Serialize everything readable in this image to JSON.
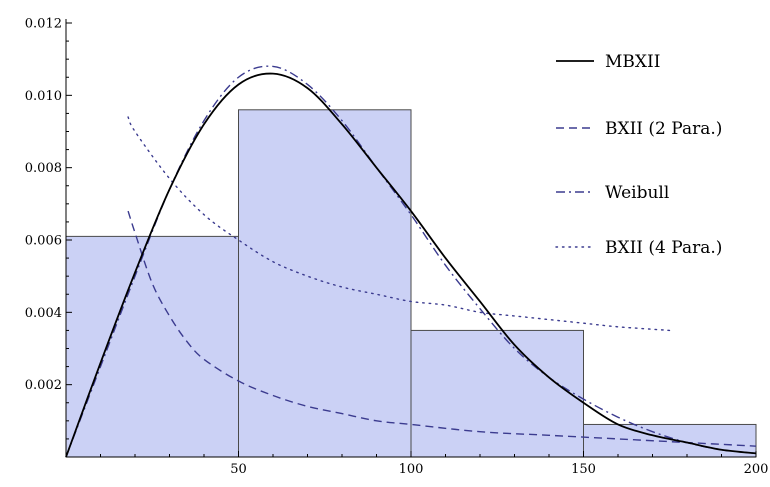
{
  "chart_data": {
    "type": "histogram",
    "xlim": [
      0,
      200
    ],
    "ylim": [
      0,
      0.012
    ],
    "x_ticks": [
      50,
      100,
      150,
      200
    ],
    "x_tick_labels": [
      "50",
      "100",
      "150",
      "200"
    ],
    "y_ticks": [
      0.002,
      0.004,
      0.006,
      0.008,
      0.01,
      0.012
    ],
    "y_tick_labels": [
      "0.002",
      "0.004",
      "0.006",
      "0.008",
      "0.010",
      "0.012"
    ],
    "grid": false,
    "legend_position": "right",
    "histogram": {
      "bins": [
        [
          0,
          50
        ],
        [
          50,
          100
        ],
        [
          100,
          150
        ],
        [
          150,
          200
        ]
      ],
      "values": [
        0.0061,
        0.0096,
        0.0035,
        0.0009
      ],
      "color": "#cbd1f5"
    },
    "series": [
      {
        "name": "MBXII",
        "style": "solid",
        "color": "#000000",
        "x": [
          0,
          10,
          20,
          30,
          40,
          50,
          60,
          70,
          80,
          90,
          100,
          110,
          120,
          130,
          140,
          150,
          160,
          170,
          180,
          190,
          200
        ],
        "y": [
          0,
          0.0026,
          0.0051,
          0.0074,
          0.0092,
          0.0103,
          0.0106,
          0.0102,
          0.0092,
          0.008,
          0.0068,
          0.0055,
          0.0043,
          0.0031,
          0.0022,
          0.0015,
          0.0009,
          0.0006,
          0.0004,
          0.0002,
          0.0001
        ]
      },
      {
        "name": "BXII (2 Para.)",
        "style": "dashed",
        "color": "#3b3b8f",
        "x": [
          18,
          20,
          25,
          30,
          35,
          40,
          50,
          60,
          70,
          80,
          90,
          100,
          120,
          140,
          160,
          180,
          200
        ],
        "y": [
          0.0068,
          0.0062,
          0.0048,
          0.0039,
          0.0032,
          0.0027,
          0.0021,
          0.0017,
          0.0014,
          0.0012,
          0.001,
          0.0009,
          0.0007,
          0.0006,
          0.0005,
          0.0004,
          0.0003
        ]
      },
      {
        "name": "Weibull",
        "style": "dashdot",
        "color": "#3b3b8f",
        "x": [
          0,
          10,
          20,
          30,
          40,
          50,
          60,
          70,
          80,
          90,
          100,
          110,
          120,
          130,
          140,
          150,
          160,
          170,
          180,
          190,
          200
        ],
        "y": [
          0,
          0.0025,
          0.005,
          0.0074,
          0.0093,
          0.0105,
          0.0108,
          0.0103,
          0.0093,
          0.008,
          0.0067,
          0.0053,
          0.0041,
          0.003,
          0.0022,
          0.0016,
          0.0011,
          0.0007,
          0.0004,
          0.0002,
          0.0001
        ]
      },
      {
        "name": "BXII (4 Para.)",
        "style": "dotted",
        "color": "#3b3b8f",
        "x": [
          18,
          20,
          30,
          40,
          50,
          60,
          70,
          80,
          90,
          100,
          110,
          120,
          130,
          140,
          150,
          160,
          175
        ],
        "y": [
          0.0094,
          0.009,
          0.0077,
          0.0067,
          0.006,
          0.0054,
          0.005,
          0.0047,
          0.0045,
          0.0043,
          0.0042,
          0.004,
          0.0039,
          0.0038,
          0.0037,
          0.0036,
          0.0035
        ]
      }
    ]
  }
}
